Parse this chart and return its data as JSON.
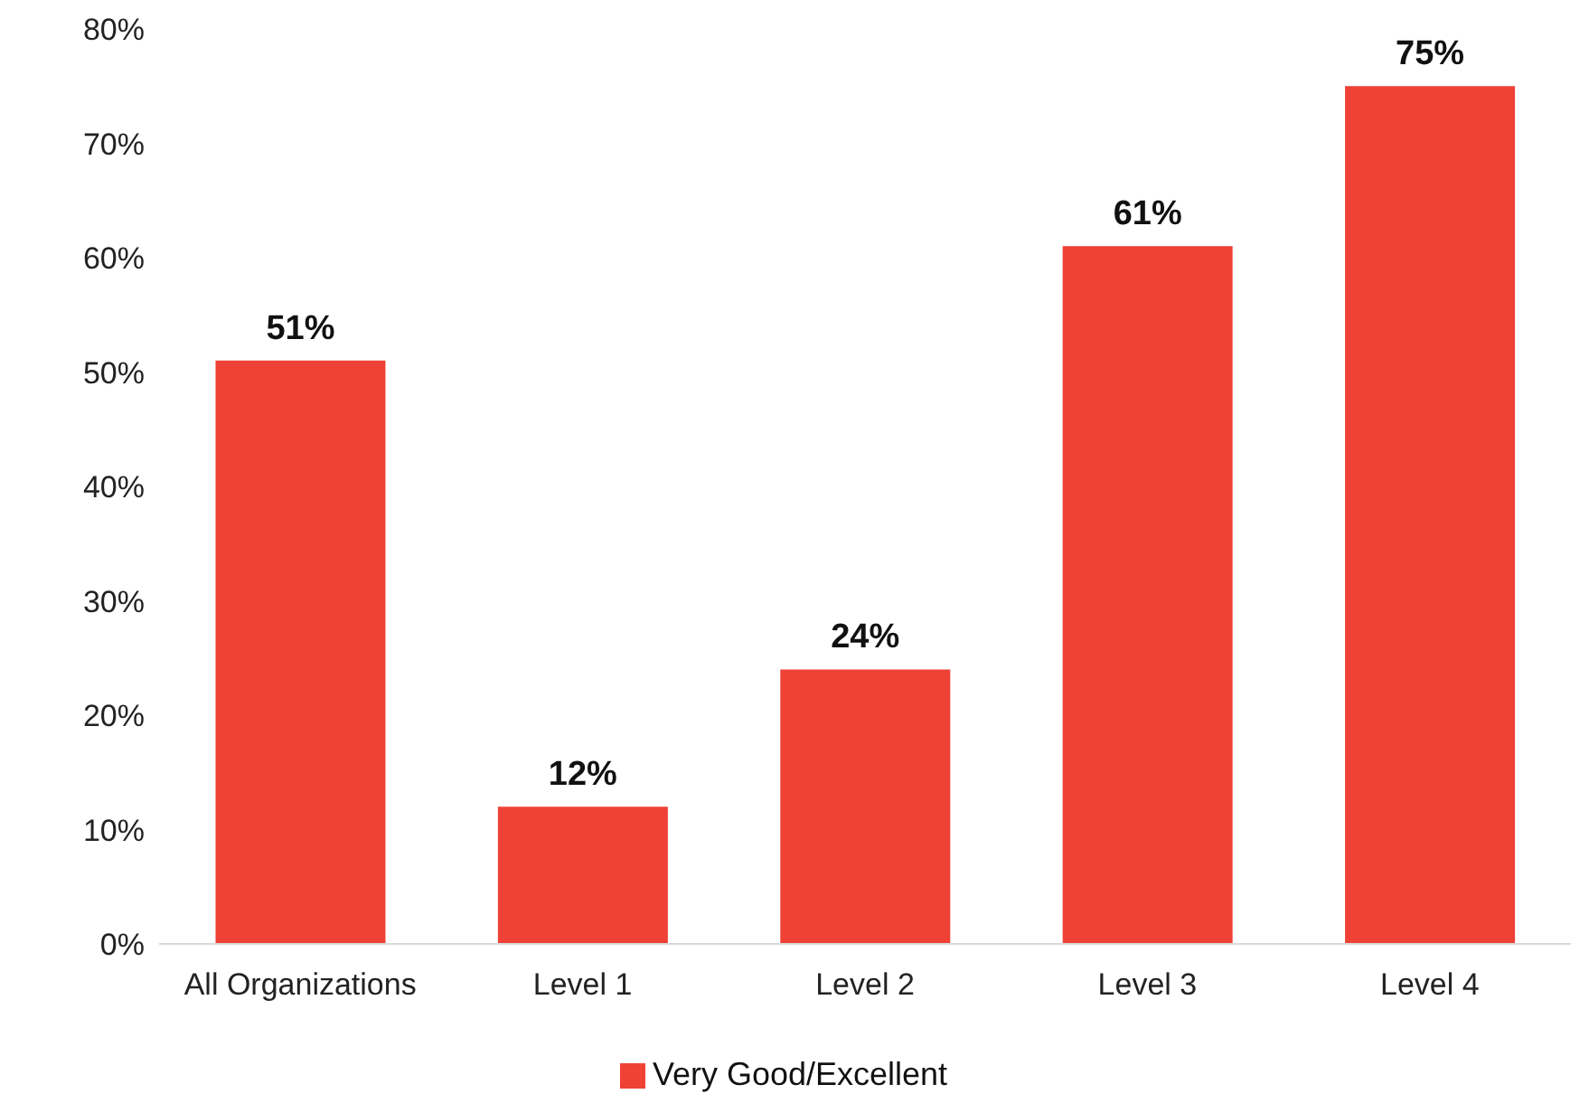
{
  "chart_data": {
    "type": "bar",
    "categories": [
      "All Organizations",
      "Level 1",
      "Level 2",
      "Level 3",
      "Level 4"
    ],
    "series": [
      {
        "name": "Very Good/Excellent",
        "color": "#ef4136",
        "values": [
          51,
          12,
          24,
          61,
          75
        ],
        "value_labels": [
          "51%",
          "12%",
          "24%",
          "61%",
          "75%"
        ]
      }
    ],
    "ylim": [
      0,
      80
    ],
    "yticks": [
      {
        "value": 0,
        "label": "0%"
      },
      {
        "value": 10,
        "label": "10%"
      },
      {
        "value": 20,
        "label": "20%"
      },
      {
        "value": 30,
        "label": "30%"
      },
      {
        "value": 40,
        "label": "40%"
      },
      {
        "value": 50,
        "label": "50%"
      },
      {
        "value": 60,
        "label": "60%"
      },
      {
        "value": 70,
        "label": "70%"
      },
      {
        "value": 80,
        "label": "80%"
      }
    ],
    "grid": false,
    "legend": "bottom"
  }
}
